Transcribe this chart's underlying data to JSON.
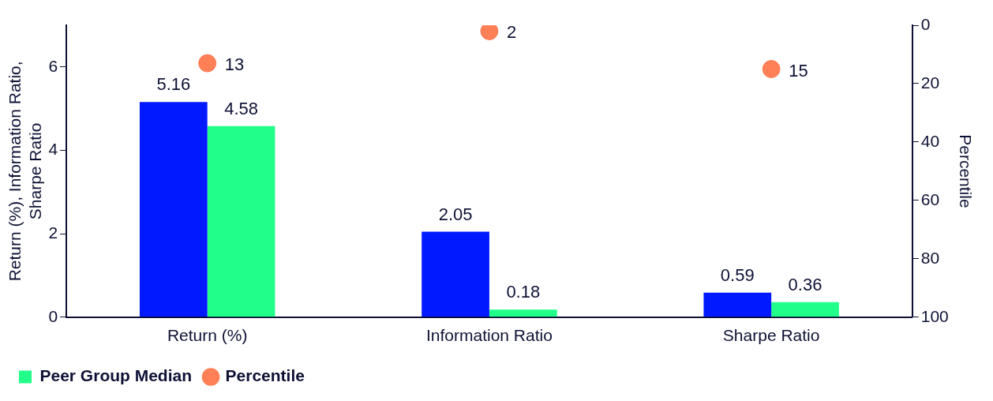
{
  "chart_data": {
    "type": "bar",
    "categories": [
      "Return (%)",
      "Information Ratio",
      "Sharpe Ratio"
    ],
    "ylabel": "Return (%), Information Ratio,\nSharpe Ratio",
    "y2label": "Percentile",
    "series": [
      {
        "color": "#0019ff",
        "values": [
          5.16,
          2.05,
          0.59
        ]
      },
      {
        "name": "Peer Group Median",
        "color": "#21ff8a",
        "values": [
          4.58,
          0.18,
          0.36
        ]
      },
      {
        "name": "Percentile",
        "type": "scatter",
        "axis": "y2",
        "color": "#ff7f57",
        "values": [
          13,
          2,
          15
        ]
      }
    ],
    "ylim": [
      0,
      7
    ],
    "yticks": [
      0,
      2,
      4,
      6
    ],
    "y2lim": [
      100,
      0
    ],
    "y2ticks": [
      0,
      20,
      40,
      60,
      80,
      100
    ],
    "data_labels": true,
    "legend": "bottom left",
    "grid": false,
    "marker": "circle"
  }
}
